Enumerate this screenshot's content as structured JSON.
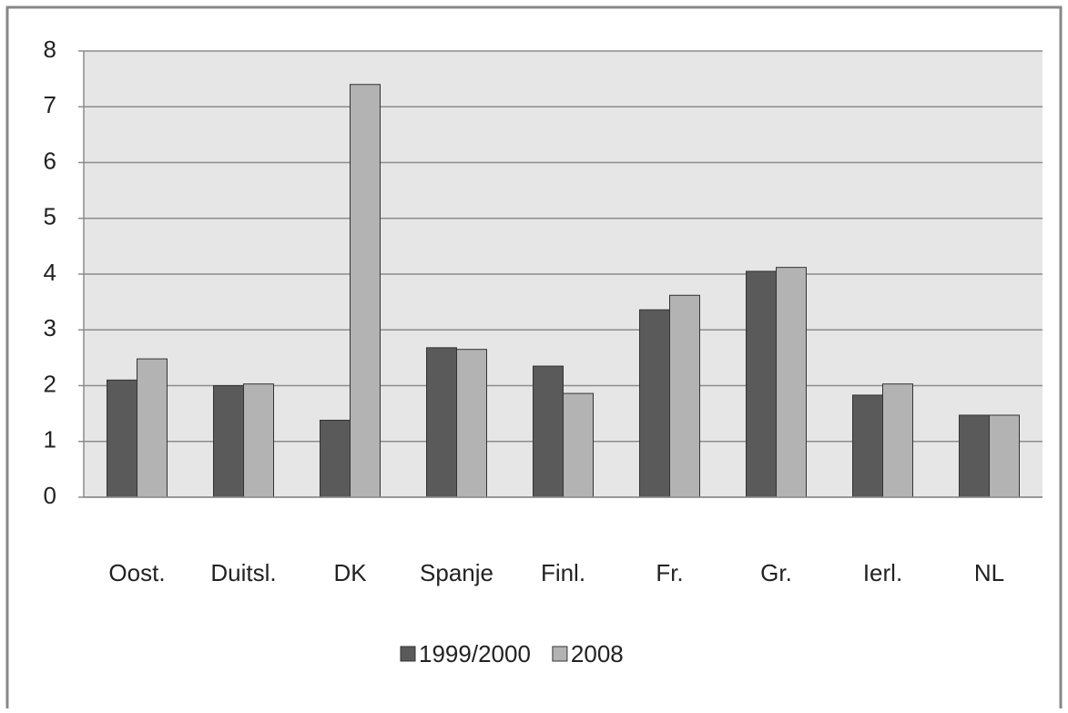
{
  "chart_data": {
    "type": "bar",
    "categories": [
      "Oost.",
      "Duitsl.",
      "DK",
      "Spanje",
      "Finl.",
      "Fr.",
      "Gr.",
      "Ierl.",
      "NL"
    ],
    "series": [
      {
        "name": "1999/2000",
        "color": "#5a5a5a",
        "values": [
          2.1,
          2.0,
          1.38,
          2.68,
          2.35,
          3.36,
          4.05,
          1.83,
          1.47
        ]
      },
      {
        "name": "2008",
        "color": "#b3b3b3",
        "values": [
          2.48,
          2.03,
          7.4,
          2.65,
          1.86,
          3.62,
          4.12,
          2.03,
          1.47
        ]
      }
    ],
    "ylim": [
      0,
      8
    ],
    "yticks": [
      0,
      1,
      2,
      3,
      4,
      5,
      6,
      7,
      8
    ],
    "grid": true,
    "legend": "bottom"
  }
}
